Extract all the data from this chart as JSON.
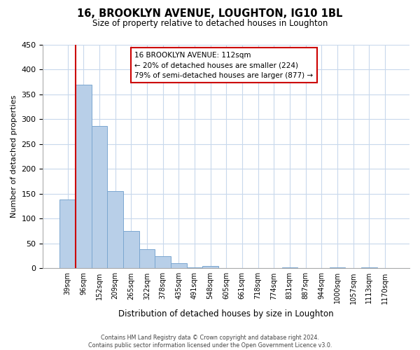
{
  "title": "16, BROOKLYN AVENUE, LOUGHTON, IG10 1BL",
  "subtitle": "Size of property relative to detached houses in Loughton",
  "xlabel": "Distribution of detached houses by size in Loughton",
  "ylabel": "Number of detached properties",
  "bar_values": [
    138,
    370,
    287,
    156,
    75,
    38,
    25,
    11,
    2,
    5,
    1,
    0,
    0,
    0,
    2,
    0,
    0,
    2,
    0,
    2,
    0
  ],
  "bar_labels": [
    "39sqm",
    "96sqm",
    "152sqm",
    "209sqm",
    "265sqm",
    "322sqm",
    "378sqm",
    "435sqm",
    "491sqm",
    "548sqm",
    "605sqm",
    "661sqm",
    "718sqm",
    "774sqm",
    "831sqm",
    "887sqm",
    "944sqm",
    "1000sqm",
    "1057sqm",
    "1113sqm",
    "1170sqm"
  ],
  "bar_color": "#b8cfe8",
  "bar_edge_color": "#7ba7d0",
  "bar_highlight_index": 1,
  "highlight_line_color": "#cc0000",
  "ylim": [
    0,
    450
  ],
  "yticks": [
    0,
    50,
    100,
    150,
    200,
    250,
    300,
    350,
    400,
    450
  ],
  "annotation_title": "16 BROOKLYN AVENUE: 112sqm",
  "annotation_line1": "← 20% of detached houses are smaller (224)",
  "annotation_line2": "79% of semi-detached houses are larger (877) →",
  "annotation_box_color": "#ffffff",
  "annotation_box_edge": "#cc0000",
  "footer_line1": "Contains HM Land Registry data © Crown copyright and database right 2024.",
  "footer_line2": "Contains public sector information licensed under the Open Government Licence v3.0.",
  "background_color": "#ffffff",
  "grid_color": "#c8d8ec"
}
